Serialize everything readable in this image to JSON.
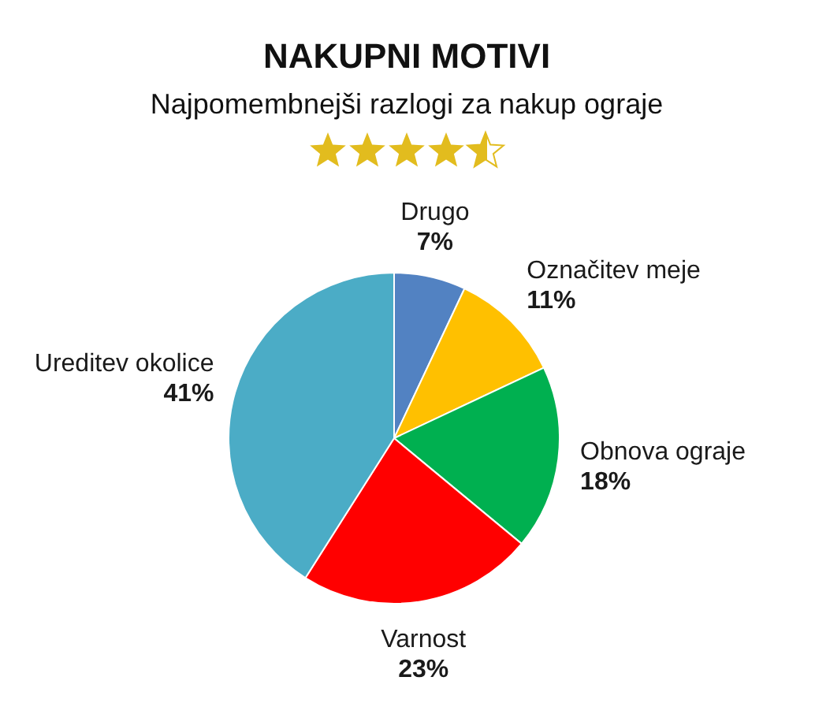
{
  "chart_data": {
    "type": "pie",
    "title": "NAKUPNI MOTIVI",
    "subtitle": "Najpomembnejši razlogi za nakup ograje",
    "categories": [
      "Drugo",
      "Označitev meje",
      "Obnova ograje",
      "Varnost",
      "Ureditev okolice"
    ],
    "values": [
      7,
      11,
      18,
      23,
      41
    ],
    "colors": [
      "#5282c2",
      "#ffc000",
      "#00b050",
      "#ff0000",
      "#4bacc6"
    ],
    "value_labels": [
      "7%",
      "11%",
      "18%",
      "23%",
      "41%"
    ]
  }
}
